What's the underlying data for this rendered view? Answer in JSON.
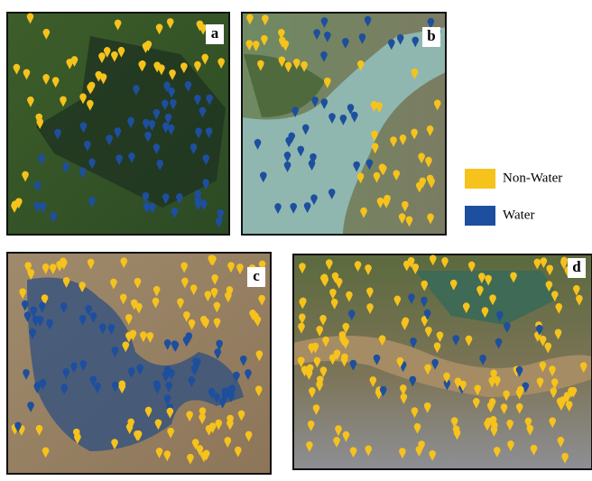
{
  "panels": [
    {
      "label": "a"
    },
    {
      "label": "b"
    },
    {
      "label": "c"
    },
    {
      "label": "d"
    }
  ],
  "legend": [
    {
      "label": "Non-Water",
      "color": "#f6c21c"
    },
    {
      "label": "Water",
      "color": "#1d4f9e"
    }
  ]
}
